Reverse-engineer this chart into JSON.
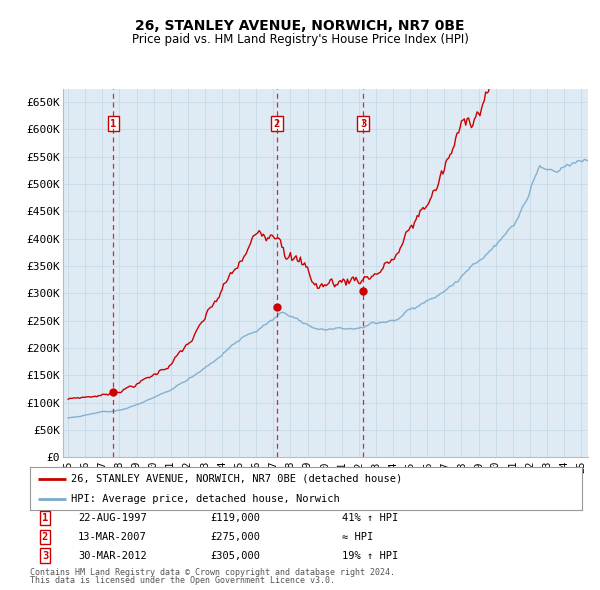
{
  "title": "26, STANLEY AVENUE, NORWICH, NR7 0BE",
  "subtitle": "Price paid vs. HM Land Registry's House Price Index (HPI)",
  "ylabel_ticks": [
    "£0",
    "£50K",
    "£100K",
    "£150K",
    "£200K",
    "£250K",
    "£300K",
    "£350K",
    "£400K",
    "£450K",
    "£500K",
    "£550K",
    "£600K",
    "£650K"
  ],
  "ytick_values": [
    0,
    50000,
    100000,
    150000,
    200000,
    250000,
    300000,
    350000,
    400000,
    450000,
    500000,
    550000,
    600000,
    650000
  ],
  "xlim_start": 1994.7,
  "xlim_end": 2025.4,
  "ylim_min": 0,
  "ylim_max": 675000,
  "red_color": "#cc0000",
  "blue_color": "#7aabcc",
  "grid_color": "#c8dcea",
  "plot_bg": "#deeaf4",
  "transactions": [
    {
      "num": 1,
      "date": "22-AUG-1997",
      "price": 119000,
      "x": 1997.64,
      "note": "41% ↑ HPI"
    },
    {
      "num": 2,
      "date": "13-MAR-2007",
      "price": 275000,
      "x": 2007.21,
      "note": "≈ HPI"
    },
    {
      "num": 3,
      "date": "30-MAR-2012",
      "price": 305000,
      "x": 2012.25,
      "note": "19% ↑ HPI"
    }
  ],
  "legend_line1": "26, STANLEY AVENUE, NORWICH, NR7 0BE (detached house)",
  "legend_line2": "HPI: Average price, detached house, Norwich",
  "footer1": "Contains HM Land Registry data © Crown copyright and database right 2024.",
  "footer2": "This data is licensed under the Open Government Licence v3.0.",
  "xtick_labels": [
    "95",
    "96",
    "97",
    "98",
    "99",
    "00",
    "01",
    "02",
    "03",
    "04",
    "05",
    "06",
    "07",
    "08",
    "09",
    "10",
    "11",
    "12",
    "13",
    "14",
    "15",
    "16",
    "17",
    "18",
    "19",
    "20",
    "21",
    "22",
    "23",
    "24",
    "25"
  ],
  "xtick_years": [
    1995,
    1996,
    1997,
    1998,
    1999,
    2000,
    2001,
    2002,
    2003,
    2004,
    2005,
    2006,
    2007,
    2008,
    2009,
    2010,
    2011,
    2012,
    2013,
    2014,
    2015,
    2016,
    2017,
    2018,
    2019,
    2020,
    2021,
    2022,
    2023,
    2024,
    2025
  ]
}
